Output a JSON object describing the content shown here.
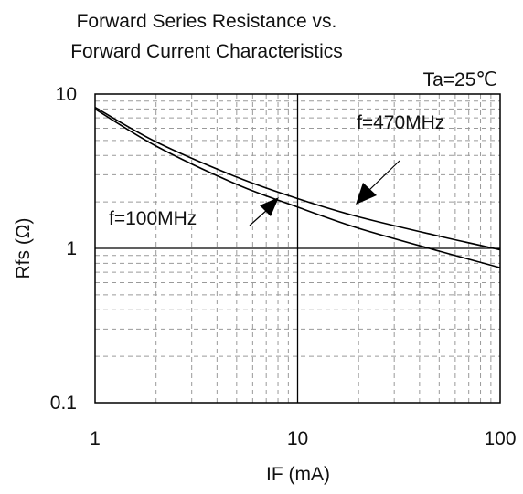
{
  "chart_data": {
    "type": "line",
    "title": "Forward Series Resistance vs.",
    "subtitle": "Forward Current Characteristics",
    "condition": "Ta=25℃",
    "xlabel": "IF (mA)",
    "ylabel": "Rfs (Ω)",
    "xscale": "log",
    "yscale": "log",
    "xlim": [
      1,
      100
    ],
    "ylim": [
      0.1,
      10
    ],
    "x_ticks": [
      "1",
      "10",
      "100"
    ],
    "y_ticks": [
      "10",
      "1",
      "0.1"
    ],
    "grid": true,
    "series": [
      {
        "name": "f=470MHz",
        "x": [
          1,
          2,
          5,
          10,
          20,
          50,
          100
        ],
        "y": [
          8.2,
          4.9,
          2.9,
          2.1,
          1.6,
          1.2,
          0.98
        ]
      },
      {
        "name": "f=100MHz",
        "x": [
          1,
          2,
          5,
          10,
          20,
          50,
          100
        ],
        "y": [
          8.0,
          4.6,
          2.6,
          1.85,
          1.35,
          0.96,
          0.75
        ]
      }
    ],
    "annotations": [
      {
        "text": "f=470MHz",
        "series": 0
      },
      {
        "text": "f=100MHz",
        "series": 1
      }
    ]
  }
}
